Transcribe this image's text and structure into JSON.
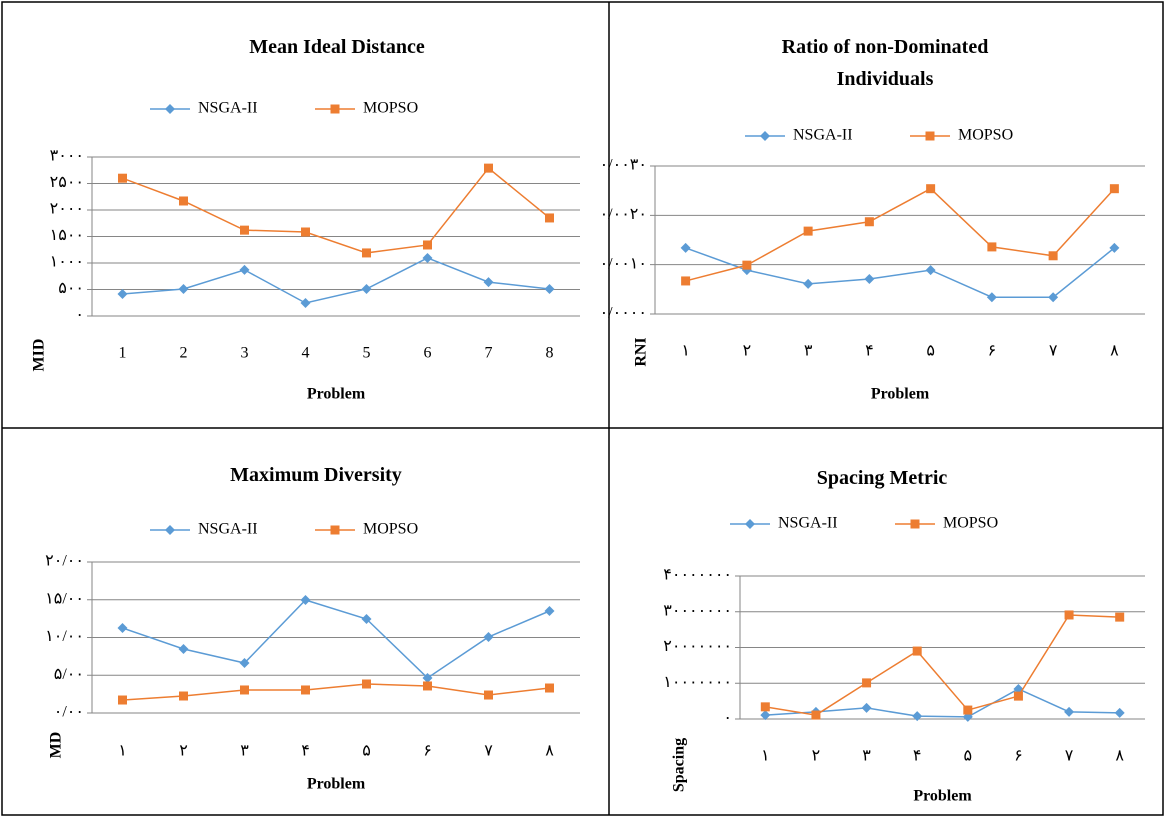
{
  "chart_data": [
    {
      "type": "line",
      "title": "Mean Ideal Distance",
      "x_label": "Problem",
      "y_label": "MID",
      "categories": [
        "1",
        "2",
        "3",
        "4",
        "5",
        "6",
        "7",
        "8"
      ],
      "series": [
        {
          "name": "NSGA-II",
          "color": "#5b9bd5",
          "marker": "diamond",
          "values": [
            415,
            510,
            870,
            245,
            510,
            1095,
            640,
            510
          ]
        },
        {
          "name": "MOPSO",
          "color": "#ed7d31",
          "marker": "square",
          "values": [
            2600,
            2170,
            1620,
            1585,
            1190,
            1340,
            2790,
            1850
          ]
        }
      ],
      "ylim": [
        0,
        3000
      ],
      "yticks": [
        {
          "value": 0,
          "label": "۰"
        },
        {
          "value": 500,
          "label": "۵۰۰"
        },
        {
          "value": 1000,
          "label": "۱۰۰۰"
        },
        {
          "value": 1500,
          "label": "۱۵۰۰"
        },
        {
          "value": 2000,
          "label": "۲۰۰۰"
        },
        {
          "value": 2500,
          "label": "۲۵۰۰"
        },
        {
          "value": 3000,
          "label": "۳۰۰۰"
        }
      ],
      "grid": true
    },
    {
      "type": "line",
      "title": "Ratio of non-Dominated Individuals",
      "x_label": "Problem",
      "y_label": "RNI",
      "categories": [
        "۱",
        "۲",
        "۳",
        "۴",
        "۵",
        "۶",
        "۷",
        "۸"
      ],
      "series": [
        {
          "name": "NSGA-II",
          "color": "#5b9bd5",
          "marker": "diamond",
          "values": [
            0.00134,
            0.00089,
            0.00061,
            0.00071,
            0.00089,
            0.00034,
            0.00034,
            0.00134
          ]
        },
        {
          "name": "MOPSO",
          "color": "#ed7d31",
          "marker": "square",
          "values": [
            0.00067,
            0.00099,
            0.00168,
            0.00187,
            0.00254,
            0.00136,
            0.00118,
            0.00254
          ]
        }
      ],
      "ylim": [
        0,
        0.003
      ],
      "yticks": [
        {
          "value": 0,
          "label": "۰/۰۰۰۰"
        },
        {
          "value": 0.001,
          "label": "۰/۰۰۱۰"
        },
        {
          "value": 0.002,
          "label": "۰/۰۰۲۰"
        },
        {
          "value": 0.003,
          "label": "۰/۰۰۳۰"
        }
      ],
      "grid": true
    },
    {
      "type": "line",
      "title": "Maximum Diversity",
      "x_label": "Problem",
      "y_label": "MD",
      "categories": [
        "۱",
        "۲",
        "۳",
        "۴",
        "۵",
        "۶",
        "۷",
        "۸"
      ],
      "series": [
        {
          "name": "NSGA-II",
          "color": "#5b9bd5",
          "marker": "diamond",
          "values": [
            11.26,
            8.48,
            6.62,
            14.97,
            12.45,
            4.64,
            10.07,
            13.51
          ]
        },
        {
          "name": "MOPSO",
          "color": "#ed7d31",
          "marker": "square",
          "values": [
            1.72,
            2.25,
            3.05,
            3.05,
            3.84,
            3.58,
            2.38,
            3.31
          ]
        }
      ],
      "ylim": [
        0,
        20
      ],
      "yticks": [
        {
          "value": 0,
          "label": "۰/۰۰"
        },
        {
          "value": 5,
          "label": "۵/۰۰"
        },
        {
          "value": 10,
          "label": "۱۰/۰۰"
        },
        {
          "value": 15,
          "label": "۱۵/۰۰"
        },
        {
          "value": 20,
          "label": "۲۰/۰۰"
        }
      ],
      "grid": true
    },
    {
      "type": "line",
      "title": "Spacing Metric",
      "x_label": "Problem",
      "y_label": "Spacing",
      "categories": [
        "۱",
        "۲",
        "۳",
        "۴",
        "۵",
        "۶",
        "۷",
        "۸"
      ],
      "series": [
        {
          "name": "NSGA-II",
          "color": "#5b9bd5",
          "marker": "diamond",
          "values": [
            1100000,
            2000000,
            3100000,
            800000,
            600000,
            8400000,
            2000000,
            1700000
          ]
        },
        {
          "name": "MOPSO",
          "color": "#ed7d31",
          "marker": "square",
          "values": [
            3400000,
            1100000,
            10100000,
            19000000,
            2500000,
            6400000,
            29100000,
            28500000
          ]
        }
      ],
      "ylim": [
        0,
        40000000
      ],
      "yticks": [
        {
          "value": 0,
          "label": "۰"
        },
        {
          "value": 10000000,
          "label": "۱۰۰۰۰۰۰۰"
        },
        {
          "value": 20000000,
          "label": "۲۰۰۰۰۰۰۰"
        },
        {
          "value": 30000000,
          "label": "۳۰۰۰۰۰۰۰"
        },
        {
          "value": 40000000,
          "label": "۴۰۰۰۰۰۰۰"
        }
      ],
      "grid": true
    }
  ]
}
